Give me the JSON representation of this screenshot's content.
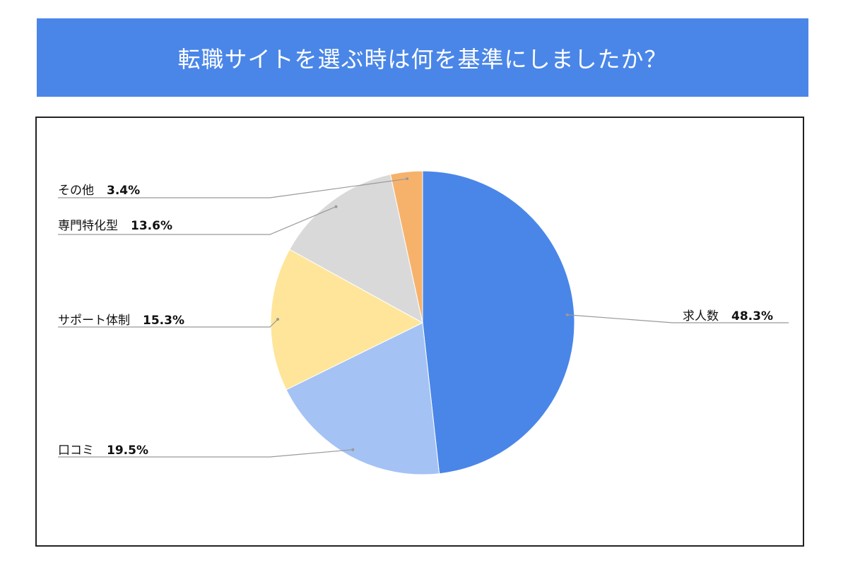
{
  "title": "転職サイトを選ぶ時は何を基準にしましたか？",
  "colors": {
    "banner": "#4a86e8",
    "求人数": "#4a86e8",
    "口コミ": "#a4c2f4",
    "サポート体制": "#ffe599",
    "専門特化型": "#d9d9d9",
    "その他": "#f6b26b",
    "leader": "#999999"
  },
  "labels": {
    "s0": {
      "name": "求人数",
      "pct": "48.3%"
    },
    "s1": {
      "name": "口コミ",
      "pct": "19.5%"
    },
    "s2": {
      "name": "サポート体制",
      "pct": "15.3%"
    },
    "s3": {
      "name": "専門特化型",
      "pct": "13.6%"
    },
    "s4": {
      "name": "その他",
      "pct": "3.4%"
    }
  },
  "chart_data": {
    "type": "pie",
    "title": "転職サイトを選ぶ時は何を基準にしましたか？",
    "start_angle": "12 o'clock",
    "direction": "clockwise",
    "categories": [
      "求人数",
      "口コミ",
      "サポート体制",
      "専門特化型",
      "その他"
    ],
    "values": [
      48.3,
      19.5,
      15.3,
      13.6,
      3.4
    ],
    "unit": "%",
    "label_placement": "outside with leader lines"
  }
}
